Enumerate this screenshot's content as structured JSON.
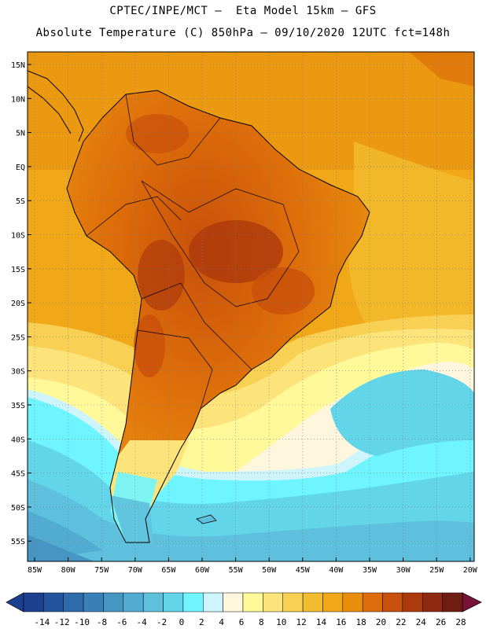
{
  "header": {
    "line1": "CPTEC/INPE/MCT –  Eta Model 15km – GFS",
    "line2": "Absolute Temperature (C) 850hPa – 09/10/2020 12UTC fct=148h"
  },
  "map": {
    "lat_labels": [
      "15N",
      "10N",
      "5N",
      "EQ",
      "5S",
      "10S",
      "15S",
      "20S",
      "25S",
      "30S",
      "35S",
      "40S",
      "45S",
      "50S",
      "55S"
    ],
    "lon_labels": [
      "85W",
      "80W",
      "75W",
      "70W",
      "65W",
      "60W",
      "55W",
      "50W",
      "45W",
      "40W",
      "35W",
      "30W",
      "25W",
      "20W"
    ]
  },
  "colorbar": {
    "labels": [
      "-14",
      "-12",
      "-10",
      "-8",
      "-6",
      "-4",
      "-2",
      "0",
      "2",
      "4",
      "6",
      "8",
      "10",
      "12",
      "14",
      "16",
      "18",
      "20",
      "22",
      "24",
      "26",
      "28"
    ],
    "colors": [
      "#1d3f8f",
      "#24559c",
      "#2f6aaa",
      "#3a80b8",
      "#4696c4",
      "#52abd0",
      "#5ec0dd",
      "#62d5e8",
      "#6ff5ff",
      "#cdf5fb",
      "#fff6de",
      "#fff99a",
      "#fde47a",
      "#f8d054",
      "#f2bc30",
      "#f0a818",
      "#e98d0e",
      "#dd6d0a",
      "#c8500a",
      "#ad3a0c",
      "#8e2a10",
      "#6f1c12"
    ]
  }
}
